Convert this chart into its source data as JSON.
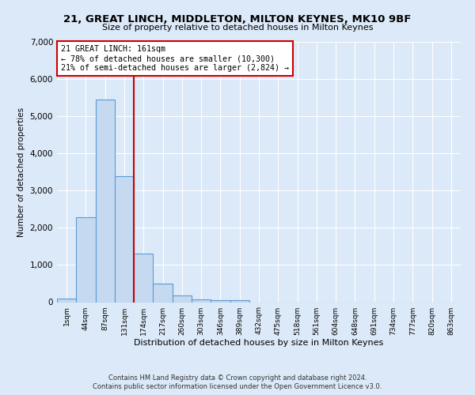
{
  "title1": "21, GREAT LINCH, MIDDLETON, MILTON KEYNES, MK10 9BF",
  "title2": "Size of property relative to detached houses in Milton Keynes",
  "xlabel": "Distribution of detached houses by size in Milton Keynes",
  "ylabel": "Number of detached properties",
  "categories": [
    "1sqm",
    "44sqm",
    "87sqm",
    "131sqm",
    "174sqm",
    "217sqm",
    "260sqm",
    "303sqm",
    "346sqm",
    "389sqm",
    "432sqm",
    "475sqm",
    "518sqm",
    "561sqm",
    "604sqm",
    "648sqm",
    "691sqm",
    "734sqm",
    "777sqm",
    "820sqm",
    "863sqm"
  ],
  "values": [
    100,
    2280,
    5450,
    3380,
    1310,
    500,
    175,
    80,
    60,
    50,
    0,
    0,
    0,
    0,
    0,
    0,
    0,
    0,
    0,
    0,
    0
  ],
  "bar_color": "#c5d9f0",
  "bar_edge_color": "#5b9bd5",
  "vline_x": 3.5,
  "vline_color": "#cc0000",
  "annotation_text": "21 GREAT LINCH: 161sqm\n← 78% of detached houses are smaller (10,300)\n21% of semi-detached houses are larger (2,824) →",
  "ylim": [
    0,
    7000
  ],
  "yticks": [
    0,
    1000,
    2000,
    3000,
    4000,
    5000,
    6000,
    7000
  ],
  "footer1": "Contains HM Land Registry data © Crown copyright and database right 2024.",
  "footer2": "Contains public sector information licensed under the Open Government Licence v3.0.",
  "bg_color": "#dce9f8",
  "plot_bg": "#dce9f8",
  "grid_color": "#ffffff"
}
